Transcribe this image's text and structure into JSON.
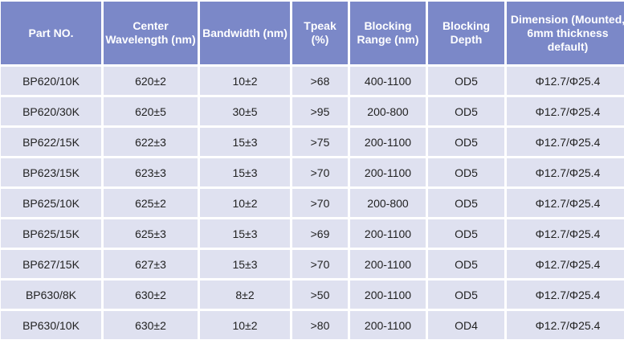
{
  "headers": [
    "Part NO.",
    "Center Wavelength (nm)",
    "Bandwidth (nm)",
    "Tpeak (%)",
    "Blocking Range (nm)",
    "Blocking Depth",
    "Dimension (Mounted, 6mm thickness default)"
  ],
  "rows": [
    [
      "BP620/10K",
      "620±2",
      "10±2",
      ">68",
      "400-1100",
      "OD5",
      "Φ12.7/Φ25.4"
    ],
    [
      "BP620/30K",
      "620±5",
      "30±5",
      ">95",
      "200-800",
      "OD5",
      "Φ12.7/Φ25.4"
    ],
    [
      "BP622/15K",
      "622±3",
      "15±3",
      ">75",
      "200-1100",
      "OD5",
      "Φ12.7/Φ25.4"
    ],
    [
      "BP623/15K",
      "623±3",
      "15±3",
      ">70",
      "200-1100",
      "OD5",
      "Φ12.7/Φ25.4"
    ],
    [
      "BP625/10K",
      "625±2",
      "10±2",
      ">70",
      "200-800",
      "OD5",
      "Φ12.7/Φ25.4"
    ],
    [
      "BP625/15K",
      "625±3",
      "15±3",
      ">69",
      "200-1100",
      "OD5",
      "Φ12.7/Φ25.4"
    ],
    [
      "BP627/15K",
      "627±3",
      "15±3",
      ">70",
      "200-1100",
      "OD5",
      "Φ12.7/Φ25.4"
    ],
    [
      "BP630/8K",
      "630±2",
      "8±2",
      ">50",
      "200-1100",
      "OD5",
      "Φ12.7/Φ25.4"
    ],
    [
      "BP630/10K",
      "630±2",
      "10±2",
      ">80",
      "200-1100",
      "OD4",
      "Φ12.7/Φ25.4"
    ]
  ],
  "colors": {
    "header_bg": "#7b88c8",
    "row_bg": "#dfe1f0"
  }
}
